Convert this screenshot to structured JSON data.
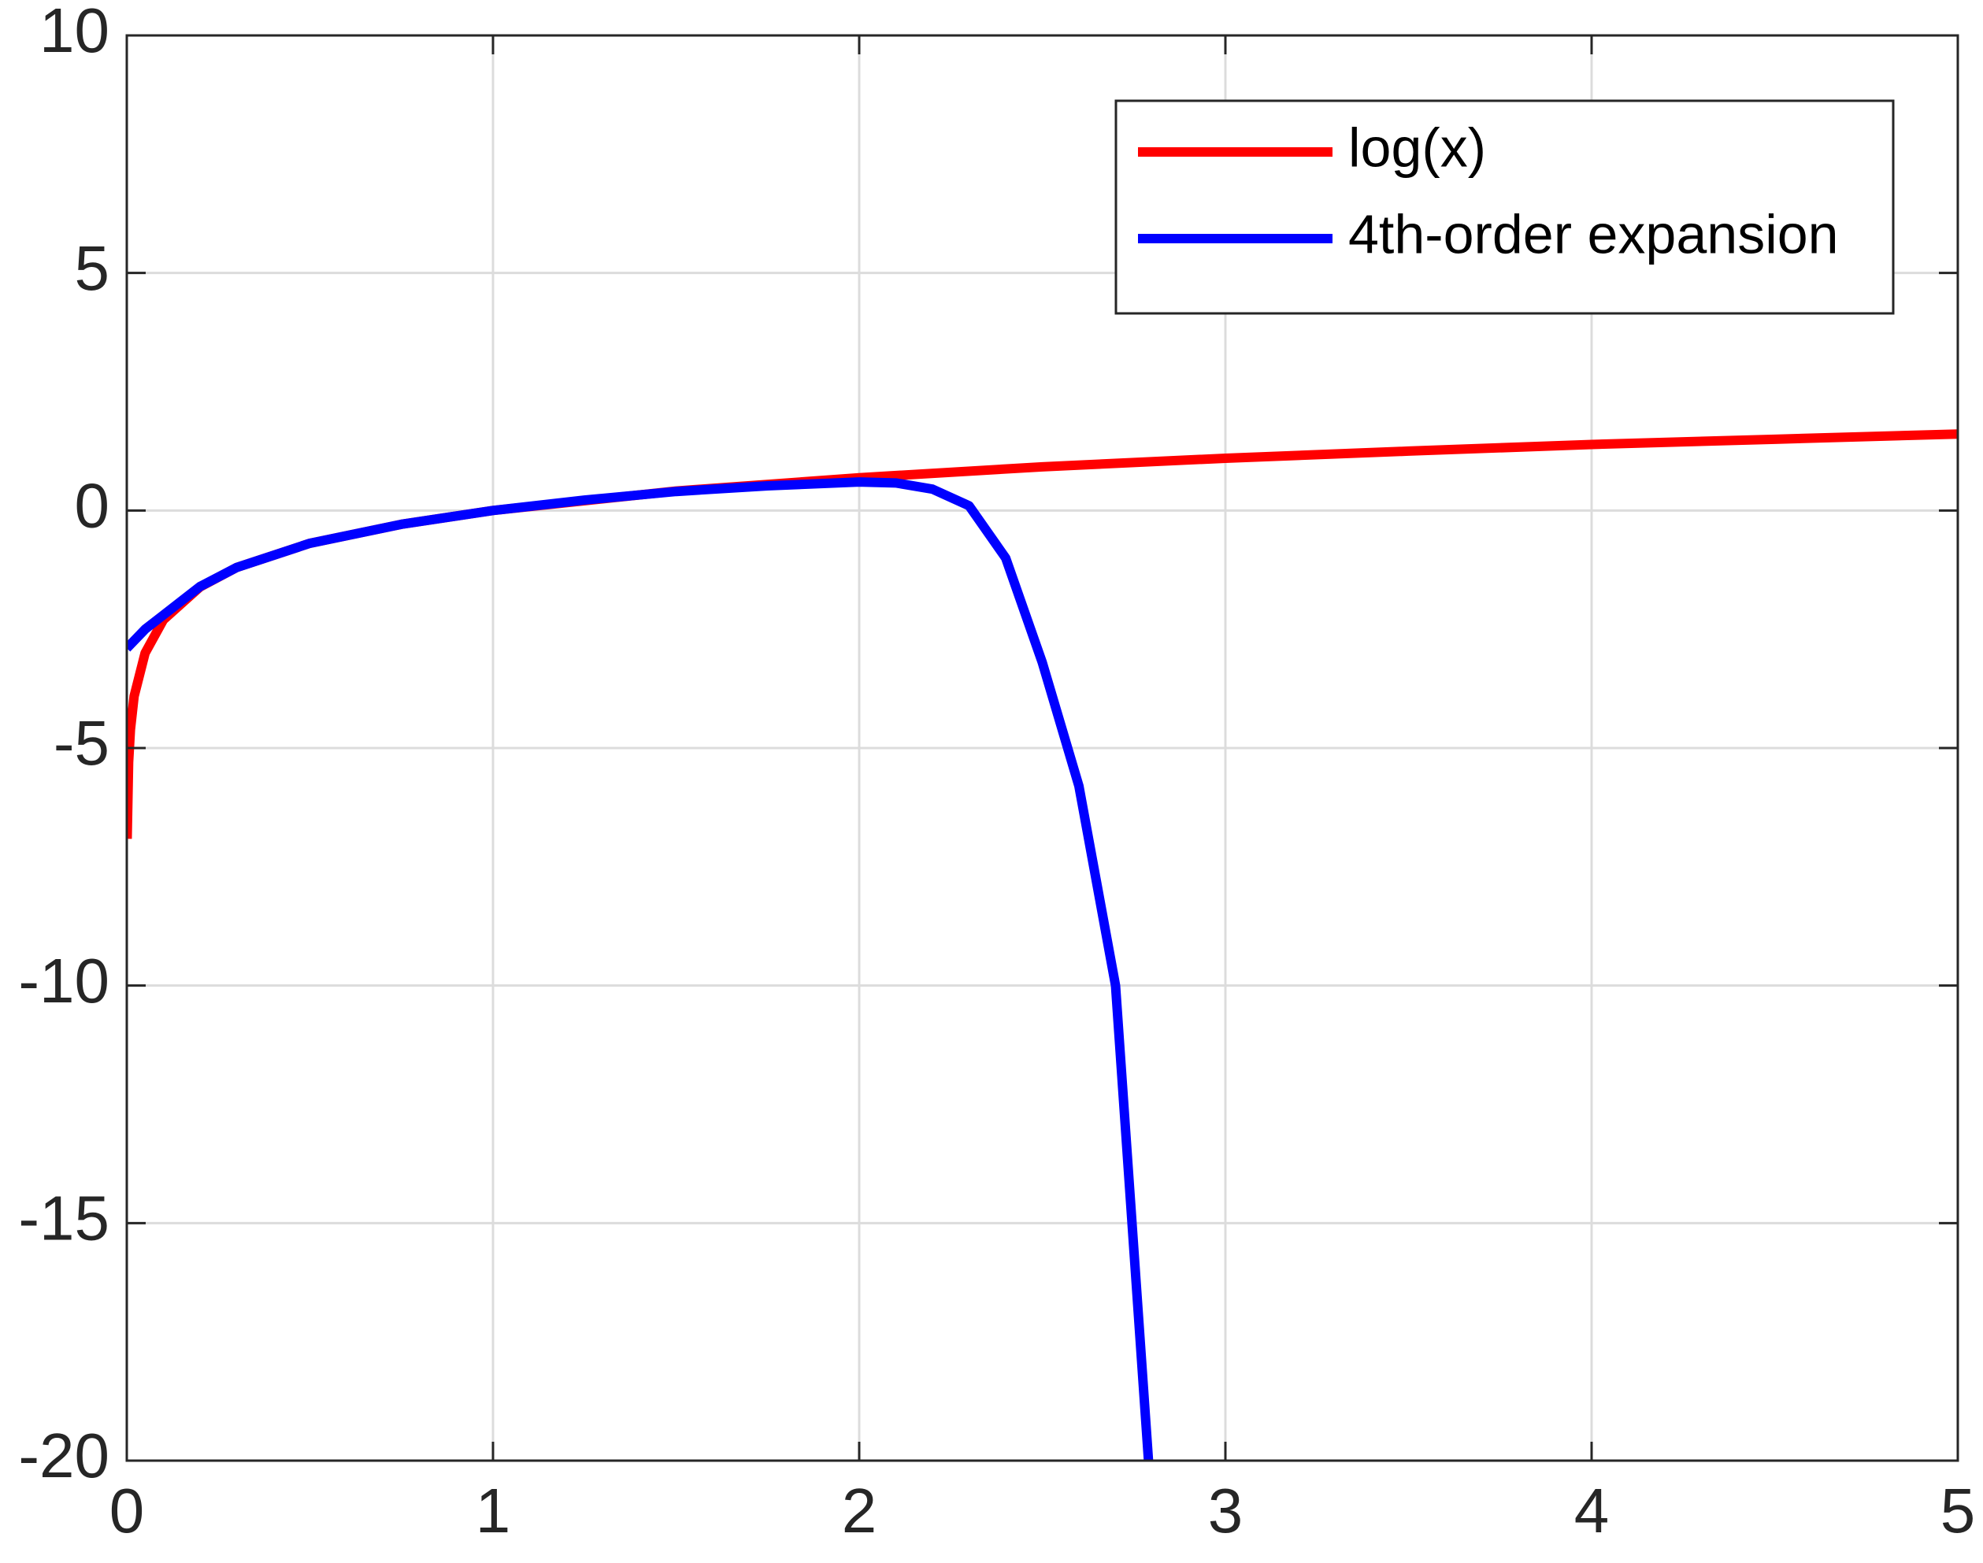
{
  "chart_data": {
    "type": "line",
    "xlim": [
      0,
      5
    ],
    "xticks": [
      0,
      1,
      2,
      3,
      4,
      5
    ],
    "ylim": [
      -20,
      10
    ],
    "yticks": [
      -20,
      -15,
      -10,
      -5,
      0,
      5,
      10
    ],
    "grid": true,
    "legend": "top-right",
    "series": [
      {
        "name": "log(x)",
        "color": "#ff0000",
        "x": [
          0.001,
          0.005,
          0.01,
          0.02,
          0.05,
          0.1,
          0.2,
          0.3,
          0.5,
          0.75,
          1,
          1.5,
          2,
          2.5,
          3,
          3.5,
          4,
          4.5,
          5
        ],
        "values": [
          -6.91,
          -5.3,
          -4.61,
          -3.91,
          -3.0,
          -2.3,
          -1.61,
          -1.2,
          -0.69,
          -0.29,
          0,
          0.41,
          0.69,
          0.92,
          1.1,
          1.25,
          1.39,
          1.5,
          1.61
        ]
      },
      {
        "name": "4th-order expansion",
        "color": "#0000ff",
        "x": [
          0,
          0.05,
          0.1,
          0.2,
          0.3,
          0.5,
          0.75,
          1,
          1.25,
          1.5,
          1.75,
          2,
          2.1,
          2.2,
          2.3,
          2.4,
          2.5,
          2.6,
          2.7,
          2.79
        ],
        "values": [
          -2.9,
          -2.5,
          -2.2,
          -1.6,
          -1.2,
          -0.69,
          -0.29,
          0,
          0.22,
          0.4,
          0.52,
          0.6,
          0.58,
          0.45,
          0.1,
          -1,
          -3.2,
          -5.8,
          -10,
          -20
        ]
      }
    ]
  }
}
